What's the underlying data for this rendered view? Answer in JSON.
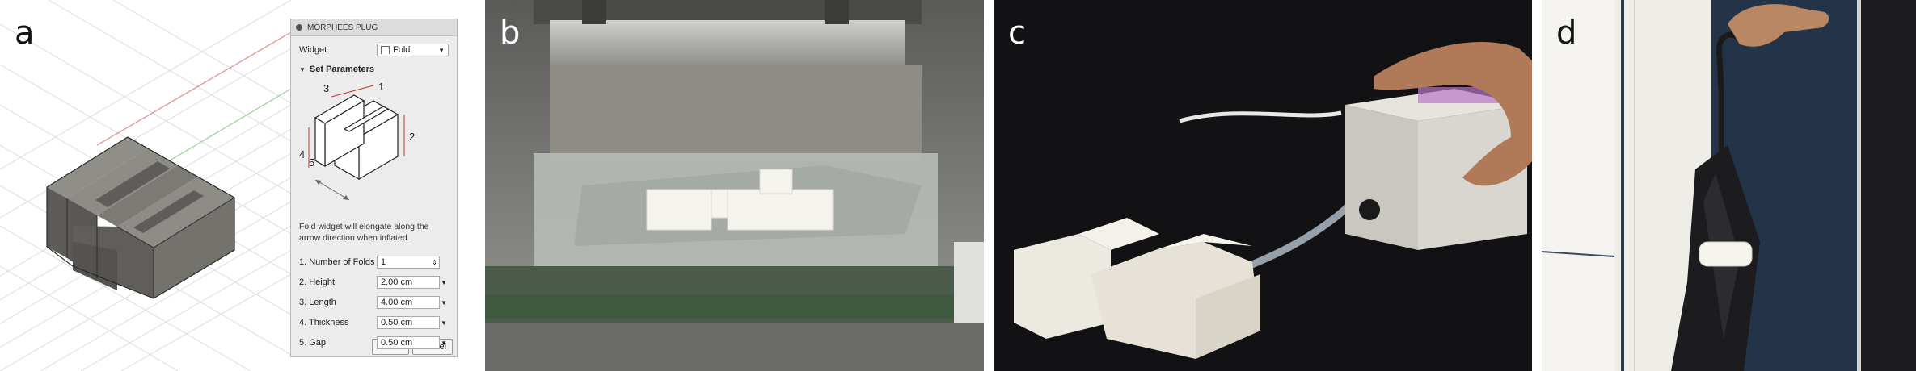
{
  "panels": {
    "a": {
      "label": "a"
    },
    "b": {
      "label": "b"
    },
    "c": {
      "label": "c"
    },
    "d": {
      "label": "d"
    }
  },
  "plugin": {
    "title": "MORPHEES PLUG",
    "widget_label": "Widget",
    "widget_value": "Fold",
    "section_title": "Set Parameters",
    "diagram_numbers": [
      "1",
      "2",
      "3",
      "4",
      "5"
    ],
    "description": "Fold widget will elongate along the arrow direction when inflated.",
    "params": [
      {
        "label": "1. Number of Folds",
        "value": "1"
      },
      {
        "label": "2. Height",
        "value": "2.00 cm"
      },
      {
        "label": "3. Length",
        "value": "4.00 cm"
      },
      {
        "label": "4. Thickness",
        "value": "0.50 cm"
      },
      {
        "label": "5. Gap",
        "value": "0.50 cm"
      }
    ],
    "ok_label": "OK",
    "cancel_label": "Cancel"
  },
  "colors": {
    "model_top": "#8c8a85",
    "model_front": "#5e5c58",
    "model_side": "#73716c",
    "grid_line": "#d8d8d8",
    "grid_axis_red": "#e57373",
    "grid_axis_green": "#8bc78b",
    "pvc_white": "#f3f1ea"
  }
}
